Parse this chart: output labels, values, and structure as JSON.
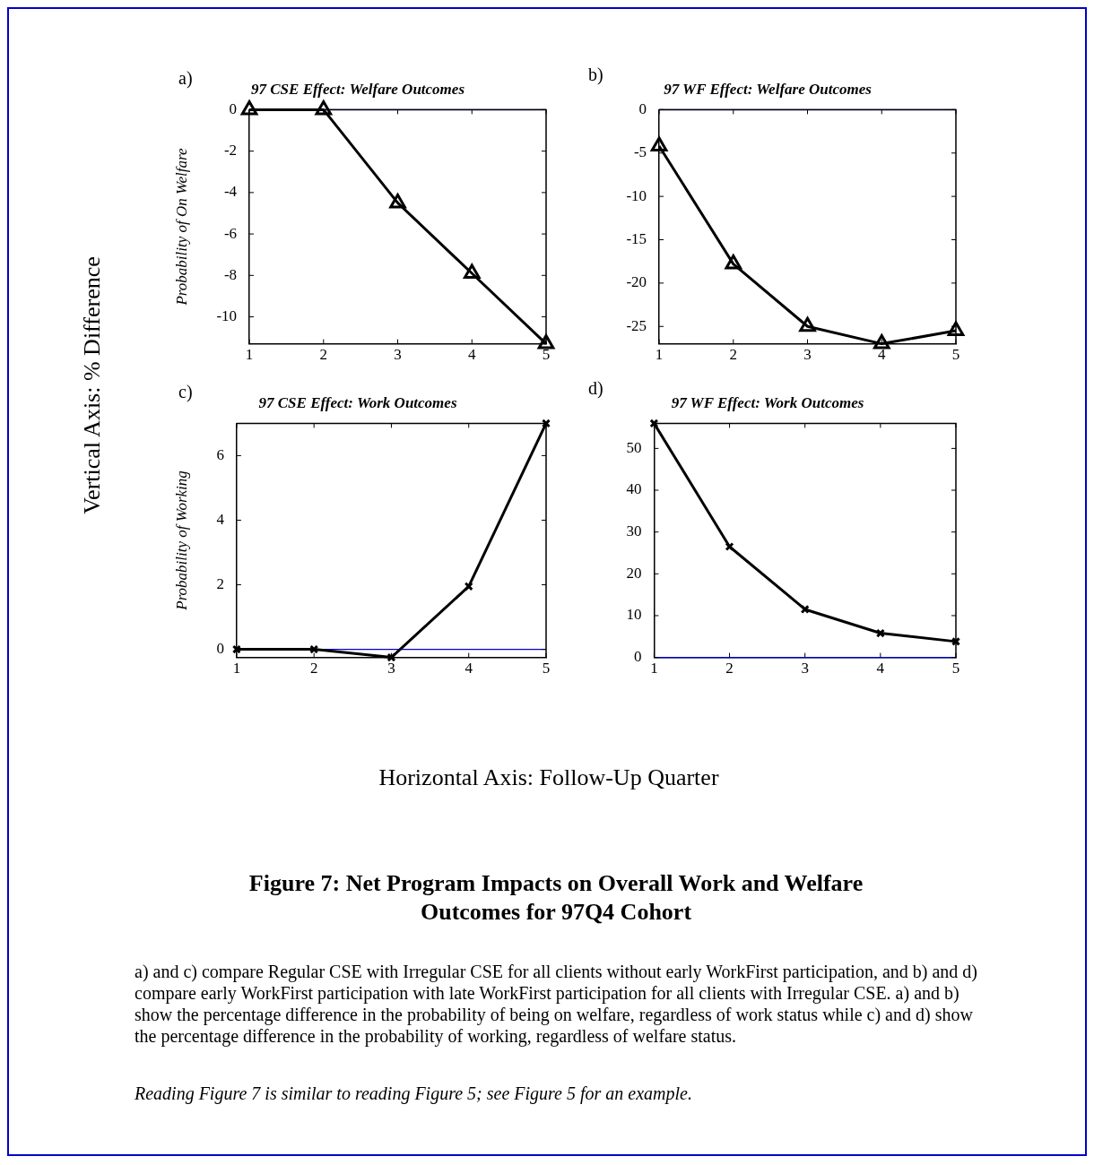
{
  "chart_data": [
    {
      "type": "line",
      "title": "97 CSE Effect: Welfare Outcomes",
      "ylabel": "Probability of On Welfare",
      "annotations": [
        "a)"
      ],
      "x": [
        1,
        2,
        3,
        4,
        5
      ],
      "series": [
        {
          "color": "#000000",
          "values": [
            0,
            0,
            -4.5,
            -7.9,
            -11.3
          ]
        }
      ],
      "xlim": [
        1,
        5
      ],
      "xticks": [
        1,
        2,
        3,
        4,
        5
      ],
      "ylim": [
        -11.3,
        0
      ],
      "yticks": [
        -10,
        -8,
        -6,
        -4,
        -2,
        0
      ],
      "marker": "triangle",
      "ref_lines": [
        {
          "axis": "y",
          "value": 0,
          "color": "#0000cc"
        }
      ]
    },
    {
      "type": "line",
      "title": "97 WF Effect: Welfare Outcomes",
      "annotations": [
        "b)"
      ],
      "x": [
        1,
        2,
        3,
        4,
        5
      ],
      "series": [
        {
          "color": "#000000",
          "values": [
            -4.2,
            -17.8,
            -25,
            -27,
            -25.5
          ]
        }
      ],
      "xlim": [
        1,
        5
      ],
      "xticks": [
        1,
        2,
        3,
        4,
        5
      ],
      "ylim": [
        -27,
        0
      ],
      "yticks": [
        -25,
        -20,
        -15,
        -10,
        -5,
        0
      ],
      "marker": "triangle",
      "ref_lines": [
        {
          "axis": "y",
          "value": 0,
          "color": "#0000cc"
        }
      ]
    },
    {
      "type": "line",
      "title": "97 CSE Effect: Work Outcomes",
      "ylabel": "Probability of Working",
      "annotations": [
        "c)"
      ],
      "x": [
        1,
        2,
        3,
        4,
        5
      ],
      "series": [
        {
          "color": "#000000",
          "values": [
            0,
            0,
            -0.25,
            1.95,
            7
          ]
        }
      ],
      "xlim": [
        1,
        5
      ],
      "xticks": [
        1,
        2,
        3,
        4,
        5
      ],
      "ylim": [
        -0.25,
        7
      ],
      "yticks": [
        0,
        2,
        4,
        6
      ],
      "marker": "cross",
      "ref_lines": [
        {
          "axis": "y",
          "value": 0,
          "color": "#0000cc"
        }
      ]
    },
    {
      "type": "line",
      "title": "97 WF Effect: Work Outcomes",
      "annotations": [
        "d)"
      ],
      "x": [
        1,
        2,
        3,
        4,
        5
      ],
      "series": [
        {
          "color": "#000000",
          "values": [
            56,
            26.5,
            11.5,
            5.8,
            3.8
          ]
        }
      ],
      "xlim": [
        1,
        5
      ],
      "xticks": [
        1,
        2,
        3,
        4,
        5
      ],
      "ylim": [
        0,
        56
      ],
      "yticks": [
        0,
        10,
        20,
        30,
        40,
        50
      ],
      "marker": "cross",
      "ref_lines": [
        {
          "axis": "y",
          "value": 0,
          "color": "#0000cc"
        }
      ]
    },
    {
      "type": "other",
      "title": "Figure 7: Net Program Impacts on Overall Work and Welfare Outcomes for 97Q4 Cohort",
      "annotations": [
        "Vertical Axis: % Difference",
        "Horizontal Axis: Follow-Up Quarter",
        "a) and c) compare Regular CSE with Irregular CSE for all clients without early WorkFirst participation, and b) and d) compare early WorkFirst participation with late WorkFirst participation for all clients with Irregular CSE. a) and b) show the percentage difference in the probability of being on welfare, regardless of work status while c) and d) show the percentage difference in the probability of working, regardless of welfare status.",
        "Reading Figure 7 is similar to reading Figure 5; see Figure 5 for an example."
      ]
    }
  ]
}
